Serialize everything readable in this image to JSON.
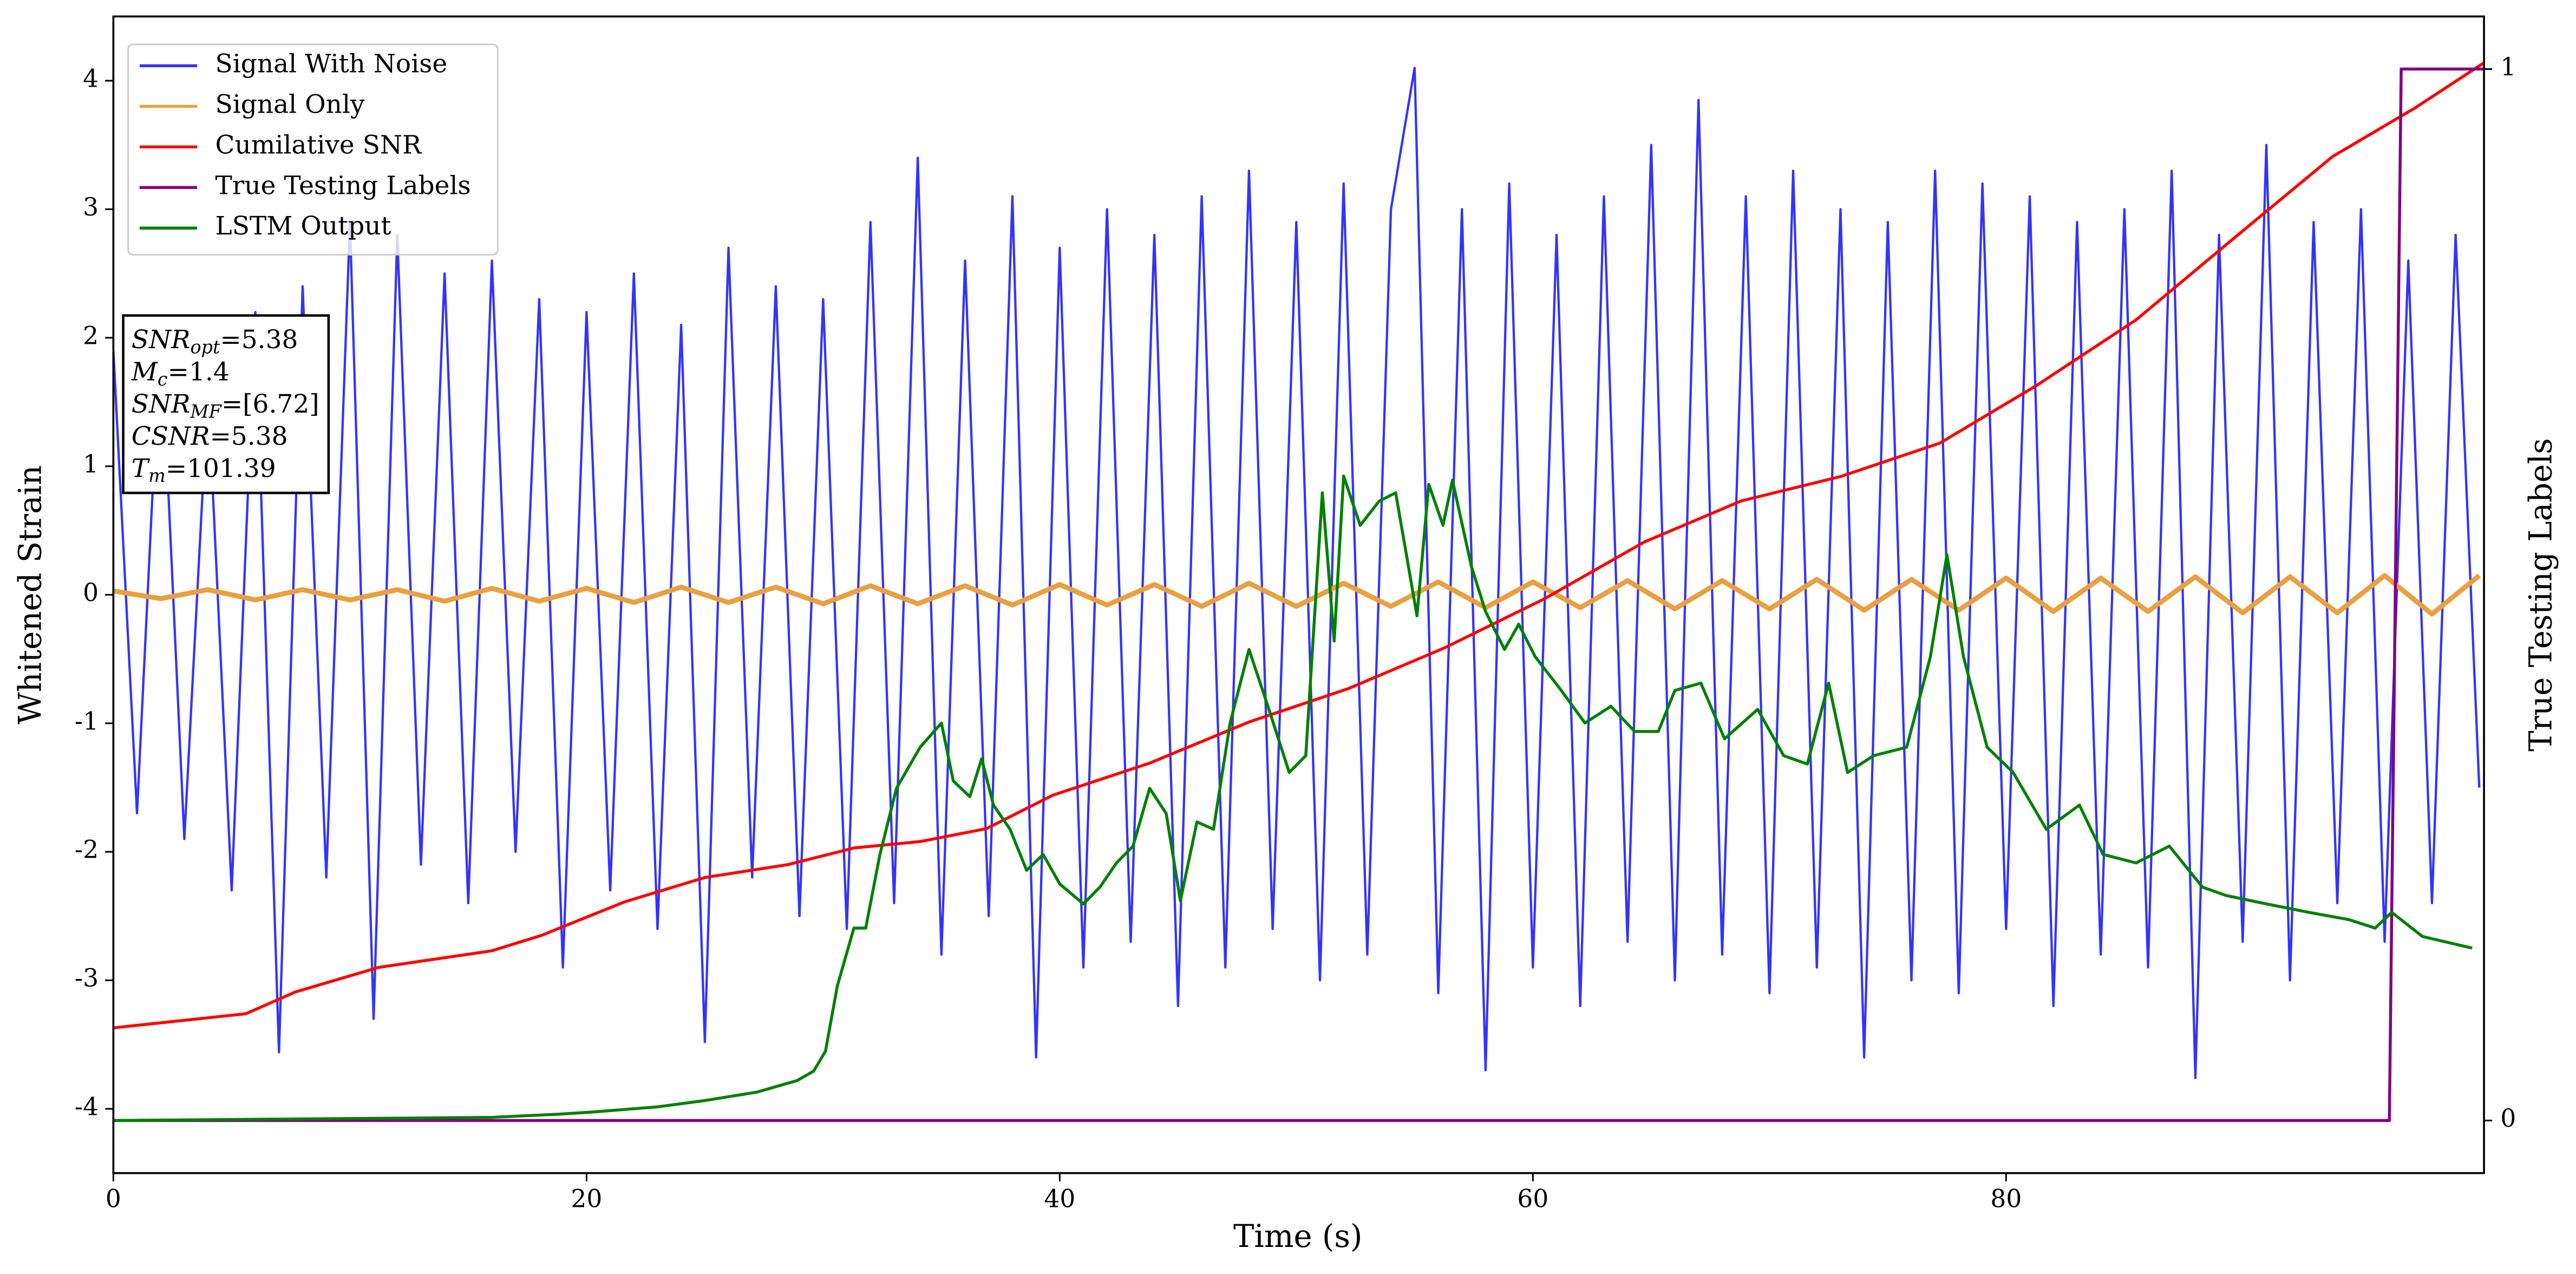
{
  "chart_data": {
    "type": "line",
    "xlabel": "Time (s)",
    "ylabel": "Whitened Strain",
    "y2label": "True Testing Labels",
    "xlim": [
      0,
      100.2
    ],
    "xticks": [
      0,
      20,
      40,
      60,
      80
    ],
    "ylim": [
      -4.5,
      4.5
    ],
    "yticks": [
      -4,
      -3,
      -2,
      -1,
      0,
      1,
      2,
      3,
      4
    ],
    "y2lim": [
      -0.05,
      1.05
    ],
    "y2ticks": [
      0,
      1
    ],
    "grid": false,
    "legend": "upper left",
    "annotation": [
      {
        "name": "SNR",
        "subscript": "opt",
        "text": "=5.38"
      },
      {
        "name": "M",
        "subscript": "c",
        "text": "=1.4"
      },
      {
        "name": "SNR",
        "subscript": "MF",
        "text": "=[6.72]"
      },
      {
        "name": "CSNR",
        "subscript": "",
        "text": "=5.38"
      },
      {
        "name": "T",
        "subscript": "m",
        "text": "=101.39"
      }
    ],
    "series": [
      {
        "name": "Signal With Noise",
        "color": "#3333ff",
        "x": [
          0,
          1,
          2,
          3,
          4,
          5,
          6,
          7,
          8,
          9,
          10,
          11,
          12,
          13,
          14,
          15,
          16,
          17,
          18,
          19,
          20,
          21,
          22,
          23,
          24,
          25,
          26,
          27,
          28,
          29,
          30,
          31,
          32,
          33,
          34,
          35,
          36,
          37,
          38,
          39,
          40,
          41,
          42,
          43,
          44,
          45,
          46,
          47,
          48,
          49,
          50,
          51,
          52,
          53,
          54,
          55,
          56,
          57,
          58,
          59,
          60,
          61,
          62,
          63,
          64,
          65,
          66,
          67,
          68,
          69,
          70,
          71,
          72,
          73,
          74,
          75,
          76,
          77,
          78,
          79,
          80,
          81,
          82,
          83,
          84,
          85,
          86,
          87,
          88,
          89,
          90,
          91,
          92,
          93,
          94,
          95,
          96,
          97,
          98,
          99,
          100
        ],
        "values": [
          1.9,
          -1.7,
          2.1,
          -1.9,
          1.6,
          -2.3,
          2.2,
          -3.56,
          2.4,
          -2.2,
          2.9,
          -3.3,
          2.8,
          -2.1,
          2.5,
          -2.4,
          2.6,
          -2.0,
          2.3,
          -2.9,
          2.2,
          -2.3,
          2.5,
          -2.6,
          2.1,
          -3.48,
          2.7,
          -2.2,
          2.4,
          -2.5,
          2.3,
          -2.6,
          2.9,
          -2.4,
          3.4,
          -2.8,
          2.6,
          -2.5,
          3.1,
          -3.6,
          2.7,
          -2.9,
          3.0,
          -2.7,
          2.8,
          -3.2,
          3.1,
          -2.9,
          3.3,
          -2.6,
          2.9,
          -3.0,
          3.2,
          -2.8,
          3.0,
          4.1,
          -3.1,
          3.0,
          -3.7,
          3.2,
          -2.9,
          2.8,
          -3.2,
          3.1,
          -2.7,
          3.5,
          -3.0,
          3.85,
          -2.8,
          3.1,
          -3.1,
          3.3,
          -2.9,
          3.0,
          -3.6,
          2.9,
          -3.0,
          3.3,
          -3.1,
          3.2,
          -2.6,
          3.1,
          -3.2,
          2.9,
          -2.8,
          3.0,
          -2.9,
          3.3,
          -3.76,
          2.8,
          -2.7,
          3.5,
          -3.0,
          2.9,
          -2.4,
          3.0,
          -2.7,
          2.6,
          -2.4,
          2.8,
          -1.5
        ]
      },
      {
        "name": "Signal Only",
        "color": "#e8a040",
        "x": [
          0,
          2,
          4,
          6,
          8,
          10,
          12,
          14,
          16,
          18,
          20,
          22,
          24,
          26,
          28,
          30,
          32,
          34,
          36,
          38,
          40,
          42,
          44,
          46,
          48,
          50,
          52,
          54,
          56,
          58,
          60,
          62,
          64,
          66,
          68,
          70,
          72,
          74,
          76,
          78,
          80,
          82,
          84,
          86,
          88,
          90,
          92,
          94,
          96,
          98,
          100
        ],
        "values": [
          0.03,
          -0.03,
          0.04,
          -0.04,
          0.04,
          -0.04,
          0.04,
          -0.05,
          0.05,
          -0.05,
          0.05,
          -0.06,
          0.06,
          -0.06,
          0.06,
          -0.07,
          0.07,
          -0.07,
          0.07,
          -0.08,
          0.08,
          -0.08,
          0.08,
          -0.09,
          0.09,
          -0.09,
          0.09,
          -0.09,
          0.1,
          -0.1,
          0.1,
          -0.1,
          0.11,
          -0.11,
          0.11,
          -0.11,
          0.12,
          -0.12,
          0.12,
          -0.12,
          0.13,
          -0.13,
          0.13,
          -0.13,
          0.14,
          -0.14,
          0.14,
          -0.14,
          0.15,
          -0.15,
          0.15
        ]
      },
      {
        "name": "Cumilative SNR",
        "color": "#ff0000",
        "x": [
          0,
          5.6,
          7.7,
          11.2,
          16,
          18.1,
          21.6,
          25,
          28.5,
          31.3,
          34.1,
          36.9,
          39.7,
          43.8,
          48,
          52.2,
          56.3,
          60.5,
          64.7,
          68.8,
          73,
          77.2,
          81.3,
          85.5,
          89.6,
          93.8,
          97.3,
          100.2
        ],
        "values": [
          -3.37,
          -3.26,
          -3.09,
          -2.9,
          -2.77,
          -2.65,
          -2.39,
          -2.2,
          -2.1,
          -1.97,
          -1.92,
          -1.82,
          -1.56,
          -1.31,
          -0.99,
          -0.73,
          -0.41,
          -0.03,
          0.41,
          0.73,
          0.92,
          1.18,
          1.63,
          2.14,
          2.77,
          3.41,
          3.79,
          4.14
        ]
      },
      {
        "name": "True Testing Labels",
        "color": "#800080",
        "axis": "y2",
        "x": [
          0,
          96.2,
          96.7,
          100.2
        ],
        "values": [
          0,
          0,
          1,
          1
        ]
      },
      {
        "name": "LSTM Output",
        "color": "#008000",
        "axis": "y2",
        "x": [
          0,
          16,
          18.8,
          20.2,
          23,
          25,
          27.2,
          28.9,
          29.6,
          30.1,
          30.6,
          31.3,
          31.8,
          32.4,
          33.1,
          34.1,
          35,
          35.5,
          36.2,
          36.7,
          37.2,
          37.9,
          38.6,
          39.3,
          40,
          41,
          41.7,
          42.4,
          43.1,
          43.8,
          44.5,
          45.1,
          45.8,
          46.5,
          47.2,
          48,
          48.8,
          49.7,
          50.4,
          51.1,
          51.6,
          52,
          52.7,
          53.5,
          54.2,
          55.1,
          55.6,
          56.2,
          56.6,
          57.4,
          58,
          58.8,
          59.4,
          60.1,
          61.2,
          62.2,
          63.3,
          64.3,
          65.3,
          66,
          67.1,
          68.1,
          69.5,
          70.6,
          71.6,
          72.5,
          73.3,
          74.4,
          75.8,
          76.8,
          77.5,
          78.2,
          79.2,
          80.3,
          81.7,
          83.1,
          84.1,
          85.5,
          86.9,
          88.3,
          89.3,
          91,
          92.8,
          94.5,
          95.6,
          96.3,
          97.6,
          99.7
        ],
        "values": [
          0,
          0.003,
          0.006,
          0.008,
          0.013,
          0.019,
          0.027,
          0.038,
          0.047,
          0.066,
          0.128,
          0.183,
          0.183,
          0.253,
          0.316,
          0.355,
          0.378,
          0.323,
          0.308,
          0.344,
          0.3,
          0.277,
          0.238,
          0.253,
          0.225,
          0.206,
          0.222,
          0.245,
          0.261,
          0.316,
          0.292,
          0.209,
          0.284,
          0.277,
          0.378,
          0.448,
          0.394,
          0.331,
          0.347,
          0.597,
          0.456,
          0.613,
          0.566,
          0.589,
          0.597,
          0.48,
          0.605,
          0.566,
          0.609,
          0.527,
          0.484,
          0.448,
          0.472,
          0.441,
          0.409,
          0.378,
          0.394,
          0.37,
          0.37,
          0.409,
          0.416,
          0.363,
          0.391,
          0.347,
          0.339,
          0.416,
          0.331,
          0.347,
          0.355,
          0.441,
          0.538,
          0.441,
          0.355,
          0.331,
          0.277,
          0.3,
          0.253,
          0.245,
          0.261,
          0.222,
          0.214,
          0.206,
          0.198,
          0.191,
          0.183,
          0.198,
          0.175,
          0.164
        ]
      }
    ]
  }
}
